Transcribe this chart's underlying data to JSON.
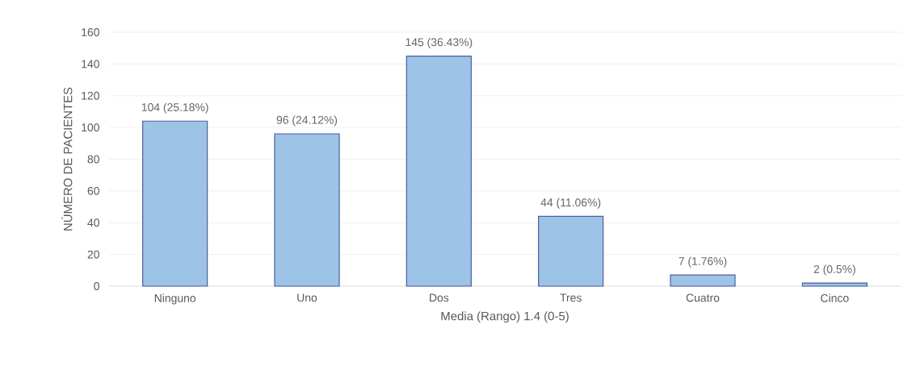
{
  "chart_data": {
    "type": "bar",
    "categories": [
      "Ninguno",
      "Uno",
      "Dos",
      "Tres",
      "Cuatro",
      "Cinco"
    ],
    "values": [
      104,
      96,
      145,
      44,
      7,
      2
    ],
    "value_labels": [
      "104 (25.18%)",
      "96 (24.12%)",
      "145 (36.43%)",
      "44 (11.06%)",
      "7 (1.76%)",
      "2 (0.5%)"
    ],
    "color": "#9dc3e6",
    "xlabel": "Media (Rango) 1.4 (0-5)",
    "ylabel": "NÚMERO DE PACIENTES",
    "ylim": [
      0,
      160
    ],
    "yticks": [
      0,
      20,
      40,
      60,
      80,
      100,
      120,
      140,
      160
    ],
    "grid": "y"
  }
}
